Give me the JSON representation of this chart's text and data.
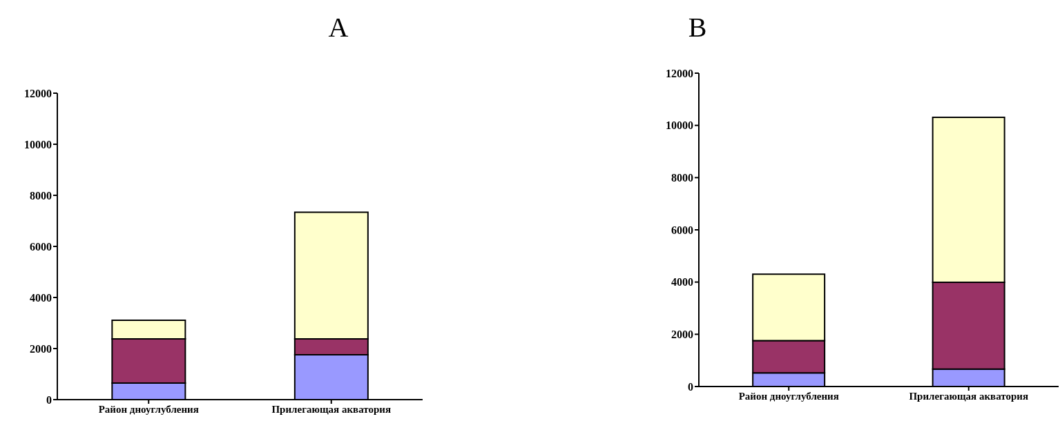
{
  "chart_data": [
    {
      "type": "bar",
      "title": "A",
      "stacked": true,
      "categories": [
        "Район дноуглубления",
        "Прилегающая акватория"
      ],
      "series": [
        {
          "color": "#9999ff",
          "values": [
            650,
            1760
          ]
        },
        {
          "color": "#993366",
          "values": [
            1730,
            620
          ]
        },
        {
          "color": "#ffffcc",
          "values": [
            730,
            4960
          ]
        }
      ],
      "ylim": [
        0,
        12000
      ],
      "yticks": [
        0,
        2000,
        4000,
        6000,
        8000,
        10000,
        12000
      ],
      "grid": false,
      "legend": false
    },
    {
      "type": "bar",
      "title": "B",
      "stacked": true,
      "categories": [
        "Район дноуглубления",
        "Прилегающая акватория"
      ],
      "series": [
        {
          "color": "#9999ff",
          "values": [
            520,
            670
          ]
        },
        {
          "color": "#993366",
          "values": [
            1240,
            3320
          ]
        },
        {
          "color": "#ffffcc",
          "values": [
            2540,
            6320
          ]
        }
      ],
      "ylim": [
        0,
        12000
      ],
      "yticks": [
        0,
        2000,
        4000,
        6000,
        8000,
        10000,
        12000
      ],
      "grid": false,
      "legend": false
    }
  ]
}
